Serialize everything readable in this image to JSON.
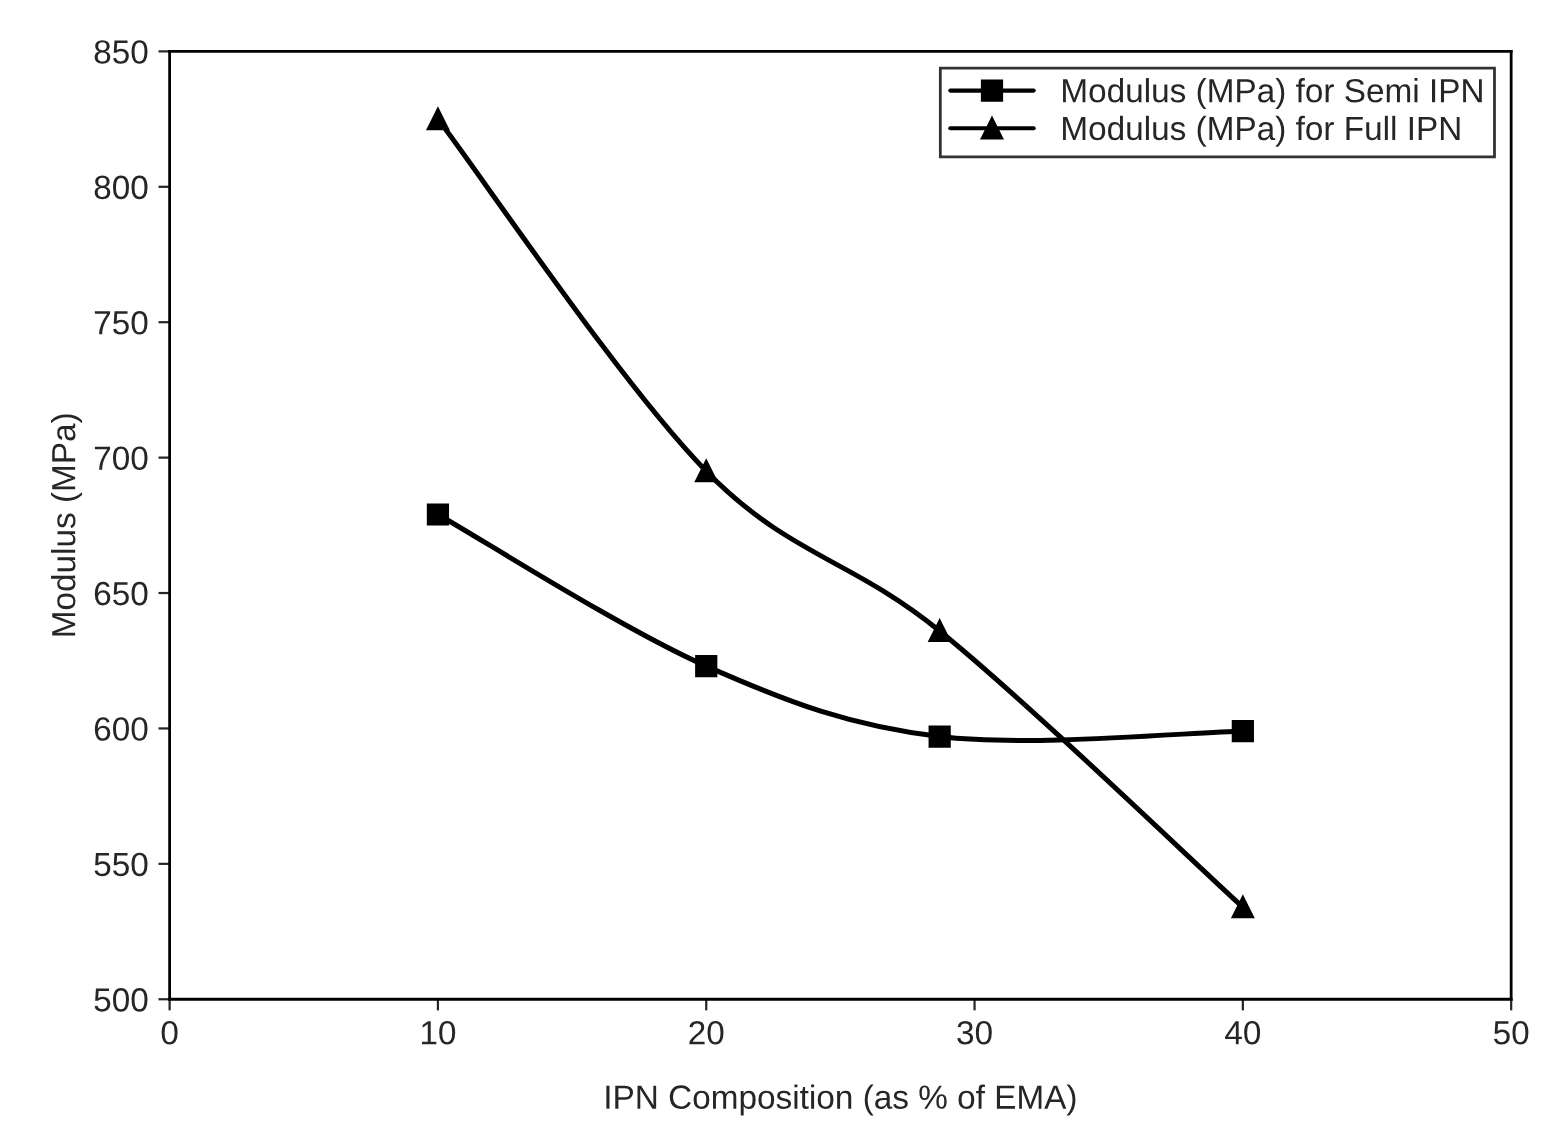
{
  "chart_data": {
    "type": "line",
    "xlabel": "IPN Composition (as % of EMA)",
    "ylabel": "Modulus (MPa)",
    "x": [
      10,
      20,
      28.7,
      40
    ],
    "series": [
      {
        "name": "Modulus (MPa) for Semi IPN",
        "color": "#000000",
        "marker": "square",
        "values": [
          679,
          623,
          597,
          599
        ]
      },
      {
        "name": "Modulus (MPa) for Full IPN",
        "color": "#000000",
        "marker": "triangle",
        "values": [
          825,
          695,
          636,
          534
        ]
      }
    ],
    "xlim": [
      0,
      50
    ],
    "xticks": [
      0,
      10,
      20,
      30,
      40,
      50
    ],
    "ylim": [
      500,
      850
    ],
    "yticks": [
      500,
      550,
      600,
      650,
      700,
      750,
      800,
      850
    ],
    "grid": false,
    "legend": "top right",
    "line_style": "solid"
  }
}
